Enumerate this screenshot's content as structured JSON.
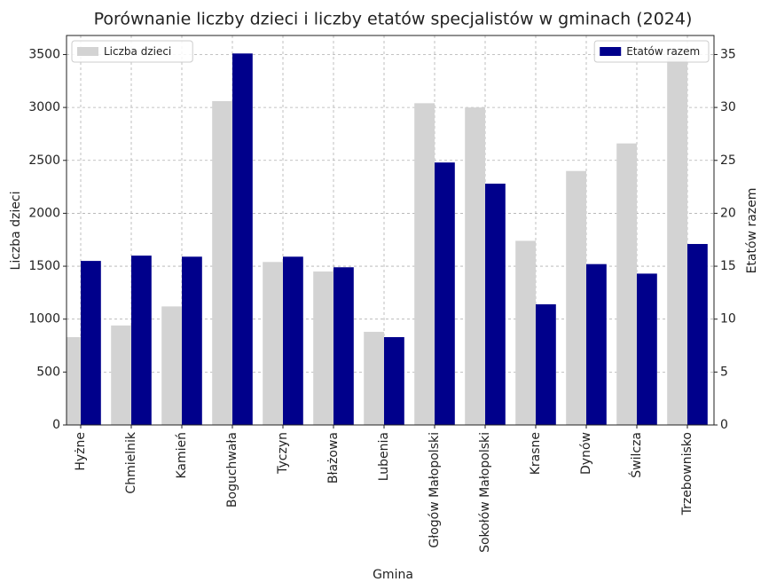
{
  "chart_data": {
    "type": "bar",
    "title": "Porównanie liczby dzieci i liczby etatów specjalistów w gminach (2024)",
    "xlabel": "Gmina",
    "ylabel": "Liczba dzieci",
    "y2label": "Etatów razem",
    "categories": [
      "Hyżne",
      "Chmielnik",
      "Kamień",
      "Boguchwała",
      "Tyczyn",
      "Błażowa",
      "Lubenia",
      "Głogów Małopolski",
      "Sokołów Małopolski",
      "Krasne",
      "Dynów",
      "Świlcza",
      "Trzebownisko"
    ],
    "series": [
      {
        "name": "Liczba dzieci",
        "color": "#d3d3d3",
        "axis": "y",
        "legend": "upper left",
        "values": [
          830,
          940,
          1120,
          3060,
          1540,
          1450,
          880,
          3040,
          3000,
          1740,
          2400,
          2660,
          3480
        ]
      },
      {
        "name": "Etatów razem",
        "color": "#00008b",
        "axis": "y2",
        "legend": "upper right",
        "values": [
          15.5,
          16.0,
          15.9,
          35.1,
          15.9,
          14.9,
          8.3,
          24.8,
          22.8,
          11.4,
          15.2,
          14.3,
          17.1
        ]
      }
    ],
    "ylim": [
      0,
      3680
    ],
    "yticks": [
      0,
      500,
      1000,
      1500,
      2000,
      2500,
      3000,
      3500
    ],
    "y2lim": [
      0,
      36.8
    ],
    "y2ticks": [
      0,
      5,
      10,
      15,
      20,
      25,
      30,
      35
    ],
    "grid": true
  }
}
